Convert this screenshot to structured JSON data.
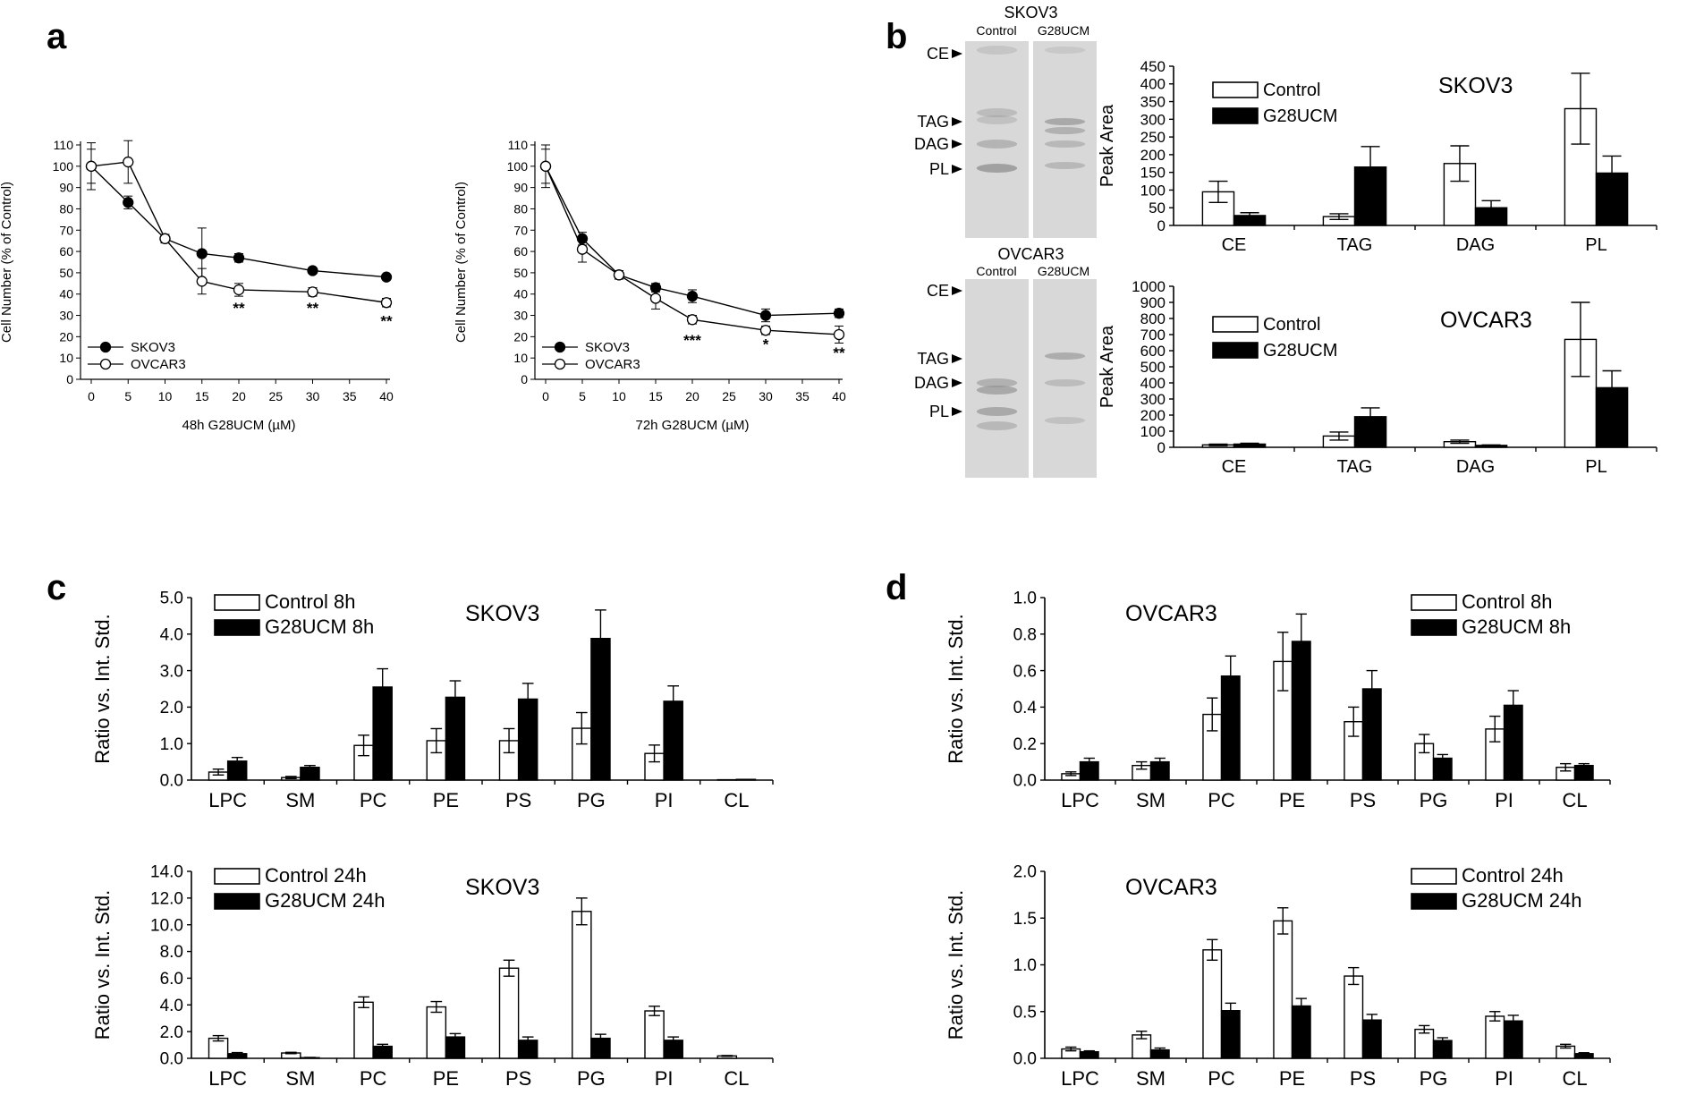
{
  "panel_labels": [
    "a",
    "b",
    "c",
    "d"
  ],
  "colors": {
    "control": "#ffffff",
    "treated": "#000000",
    "stroke": "#000000",
    "blot_bg": "#d8d8d8",
    "blot_band": "#8a8a8a"
  },
  "blots": [
    {
      "title": "SKOV3",
      "lanes": [
        "Control",
        "G28UCM"
      ],
      "markers": [
        "CE",
        "TAG",
        "DAG",
        "PL"
      ]
    },
    {
      "title": "OVCAR3",
      "lanes": [
        "Control",
        "G28UCM"
      ],
      "markers": [
        "CE",
        "TAG",
        "DAG",
        "PL"
      ]
    }
  ],
  "chart_data": [
    {
      "id": "a1",
      "type": "line",
      "xlabel": "48h G28UCM (µM)",
      "ylabel": "Cell Number (% of Control)",
      "xlim": [
        0,
        40
      ],
      "ylim": [
        0,
        110
      ],
      "xticks": [
        0,
        5,
        10,
        15,
        20,
        25,
        30,
        35,
        40
      ],
      "yticks": [
        0,
        10,
        20,
        30,
        40,
        50,
        60,
        70,
        80,
        90,
        100,
        110
      ],
      "legend": "bottom-left",
      "series": [
        {
          "name": "SKOV3",
          "marker": "filled",
          "x": [
            0,
            5,
            10,
            15,
            20,
            30,
            40
          ],
          "y": [
            100,
            83,
            66,
            59,
            57,
            51,
            48
          ],
          "err": [
            11,
            3,
            2,
            12,
            2,
            1,
            1
          ]
        },
        {
          "name": "OVCAR3",
          "marker": "open",
          "x": [
            0,
            5,
            10,
            15,
            20,
            30,
            40
          ],
          "y": [
            100,
            102,
            66,
            46,
            42,
            41,
            36
          ],
          "err": [
            8,
            10,
            2,
            6,
            3,
            2,
            2
          ]
        }
      ],
      "annotations": [
        {
          "x": 20,
          "y": 31,
          "text": "**"
        },
        {
          "x": 30,
          "y": 31,
          "text": "**"
        },
        {
          "x": 40,
          "y": 25,
          "text": "**"
        }
      ]
    },
    {
      "id": "a2",
      "type": "line",
      "xlabel": "72h G28UCM (µM)",
      "ylabel": "Cell Number (% of Control)",
      "xlim": [
        0,
        40
      ],
      "ylim": [
        0,
        110
      ],
      "xticks": [
        0,
        5,
        10,
        15,
        20,
        25,
        30,
        35,
        40
      ],
      "yticks": [
        0,
        10,
        20,
        30,
        40,
        50,
        60,
        70,
        80,
        90,
        100,
        110
      ],
      "legend": "bottom-left",
      "series": [
        {
          "name": "SKOV3",
          "marker": "filled",
          "x": [
            0,
            5,
            10,
            15,
            20,
            30,
            40
          ],
          "y": [
            100,
            66,
            49,
            43,
            39,
            30,
            31
          ],
          "err": [
            10,
            3,
            2,
            2,
            3,
            3,
            2
          ]
        },
        {
          "name": "OVCAR3",
          "marker": "open",
          "x": [
            0,
            5,
            10,
            15,
            20,
            30,
            40
          ],
          "y": [
            100,
            61,
            49,
            38,
            28,
            23,
            21
          ],
          "err": [
            8,
            6,
            2,
            5,
            2,
            2,
            4
          ]
        }
      ],
      "annotations": [
        {
          "x": 20,
          "y": 16,
          "text": "***"
        },
        {
          "x": 30,
          "y": 14,
          "text": "*"
        },
        {
          "x": 40,
          "y": 10,
          "text": "**"
        }
      ]
    },
    {
      "id": "b1",
      "type": "bar",
      "title": "SKOV3",
      "ylabel": "Peak Area",
      "ylim": [
        0,
        450
      ],
      "yticks": [
        0,
        50,
        100,
        150,
        200,
        250,
        300,
        350,
        400,
        450
      ],
      "categories": [
        "CE",
        "TAG",
        "DAG",
        "PL"
      ],
      "legend": "top-left",
      "series": [
        {
          "name": "Control",
          "values": [
            95,
            25,
            175,
            330
          ],
          "err": [
            30,
            8,
            50,
            100
          ]
        },
        {
          "name": "G28UCM",
          "values": [
            28,
            165,
            50,
            148
          ],
          "err": [
            8,
            58,
            20,
            48
          ]
        }
      ]
    },
    {
      "id": "b2",
      "type": "bar",
      "title": "OVCAR3",
      "ylabel": "Peak Area",
      "ylim": [
        0,
        1000
      ],
      "yticks": [
        0,
        100,
        200,
        300,
        400,
        500,
        600,
        700,
        800,
        900,
        1000
      ],
      "categories": [
        "CE",
        "TAG",
        "DAG",
        "PL"
      ],
      "legend": "top-left",
      "series": [
        {
          "name": "Control",
          "values": [
            15,
            70,
            35,
            670
          ],
          "err": [
            5,
            25,
            10,
            230
          ]
        },
        {
          "name": "G28UCM",
          "values": [
            20,
            190,
            12,
            370
          ],
          "err": [
            5,
            55,
            3,
            105
          ]
        }
      ]
    },
    {
      "id": "c1",
      "type": "bar",
      "title": "SKOV3",
      "ylabel": "Ratio vs. Int. Std.",
      "ylim": [
        0,
        5
      ],
      "yticks": [
        "0.0",
        "1.0",
        "2.0",
        "3.0",
        "4.0",
        "5.0"
      ],
      "categories": [
        "LPC",
        "SM",
        "PC",
        "PE",
        "PS",
        "PG",
        "PI",
        "CL"
      ],
      "legend": "top-left",
      "series": [
        {
          "name": "Control 8h",
          "values": [
            0.22,
            0.07,
            0.95,
            1.08,
            1.08,
            1.42,
            0.73,
            0.01
          ],
          "err": [
            0.08,
            0.03,
            0.28,
            0.33,
            0.33,
            0.43,
            0.23,
            0.0
          ]
        },
        {
          "name": "G28UCM 8h",
          "values": [
            0.52,
            0.35,
            2.55,
            2.27,
            2.22,
            3.88,
            2.16,
            0.02
          ],
          "err": [
            0.1,
            0.05,
            0.5,
            0.45,
            0.43,
            0.78,
            0.42,
            0.0
          ]
        }
      ]
    },
    {
      "id": "c2",
      "type": "bar",
      "title": "SKOV3",
      "ylabel": "Ratio vs. Int. Std.",
      "ylim": [
        0,
        14
      ],
      "yticks": [
        "0.0",
        "2.0",
        "4.0",
        "6.0",
        "8.0",
        "10.0",
        "12.0",
        "14.0"
      ],
      "categories": [
        "LPC",
        "SM",
        "PC",
        "PE",
        "PS",
        "PG",
        "PI",
        "CL"
      ],
      "legend": "top-left",
      "series": [
        {
          "name": "Control 24h",
          "values": [
            1.5,
            0.4,
            4.2,
            3.85,
            6.75,
            11.0,
            3.55,
            0.18
          ],
          "err": [
            0.2,
            0.05,
            0.4,
            0.4,
            0.6,
            1.0,
            0.35,
            0.03
          ]
        },
        {
          "name": "G28UCM 24h",
          "values": [
            0.35,
            0.05,
            0.9,
            1.6,
            1.35,
            1.5,
            1.35,
            0.0
          ],
          "err": [
            0.08,
            0.02,
            0.15,
            0.25,
            0.25,
            0.3,
            0.25,
            0.0
          ]
        }
      ]
    },
    {
      "id": "d1",
      "type": "bar",
      "title": "OVCAR3",
      "ylabel": "Ratio vs. Int. Std.",
      "ylim": [
        0,
        1
      ],
      "yticks": [
        "0.0",
        "0.2",
        "0.4",
        "0.6",
        "0.8",
        "1.0"
      ],
      "categories": [
        "LPC",
        "SM",
        "PC",
        "PE",
        "PS",
        "PG",
        "PI",
        "CL"
      ],
      "legend": "top-right",
      "series": [
        {
          "name": "Control 8h",
          "values": [
            0.035,
            0.08,
            0.36,
            0.65,
            0.32,
            0.2,
            0.28,
            0.07
          ],
          "err": [
            0.01,
            0.02,
            0.09,
            0.16,
            0.08,
            0.05,
            0.07,
            0.02
          ]
        },
        {
          "name": "G28UCM 8h",
          "values": [
            0.1,
            0.1,
            0.57,
            0.76,
            0.5,
            0.12,
            0.41,
            0.08
          ],
          "err": [
            0.02,
            0.02,
            0.11,
            0.15,
            0.1,
            0.02,
            0.08,
            0.01
          ]
        }
      ]
    },
    {
      "id": "d2",
      "type": "bar",
      "title": "OVCAR3",
      "ylabel": "Ratio vs. Int. Std.",
      "ylim": [
        0,
        2
      ],
      "yticks": [
        "0.0",
        "0.5",
        "1.0",
        "1.5",
        "2.0"
      ],
      "categories": [
        "LPC",
        "SM",
        "PC",
        "PE",
        "PS",
        "PG",
        "PI",
        "CL"
      ],
      "legend": "top-right",
      "series": [
        {
          "name": "Control 24h",
          "values": [
            0.1,
            0.25,
            1.16,
            1.47,
            0.88,
            0.31,
            0.45,
            0.13
          ],
          "err": [
            0.02,
            0.04,
            0.11,
            0.14,
            0.09,
            0.04,
            0.05,
            0.02
          ]
        },
        {
          "name": "G28UCM 24h",
          "values": [
            0.07,
            0.09,
            0.51,
            0.56,
            0.41,
            0.19,
            0.4,
            0.05
          ],
          "err": [
            0.01,
            0.02,
            0.08,
            0.08,
            0.06,
            0.03,
            0.06,
            0.01
          ]
        }
      ]
    }
  ]
}
